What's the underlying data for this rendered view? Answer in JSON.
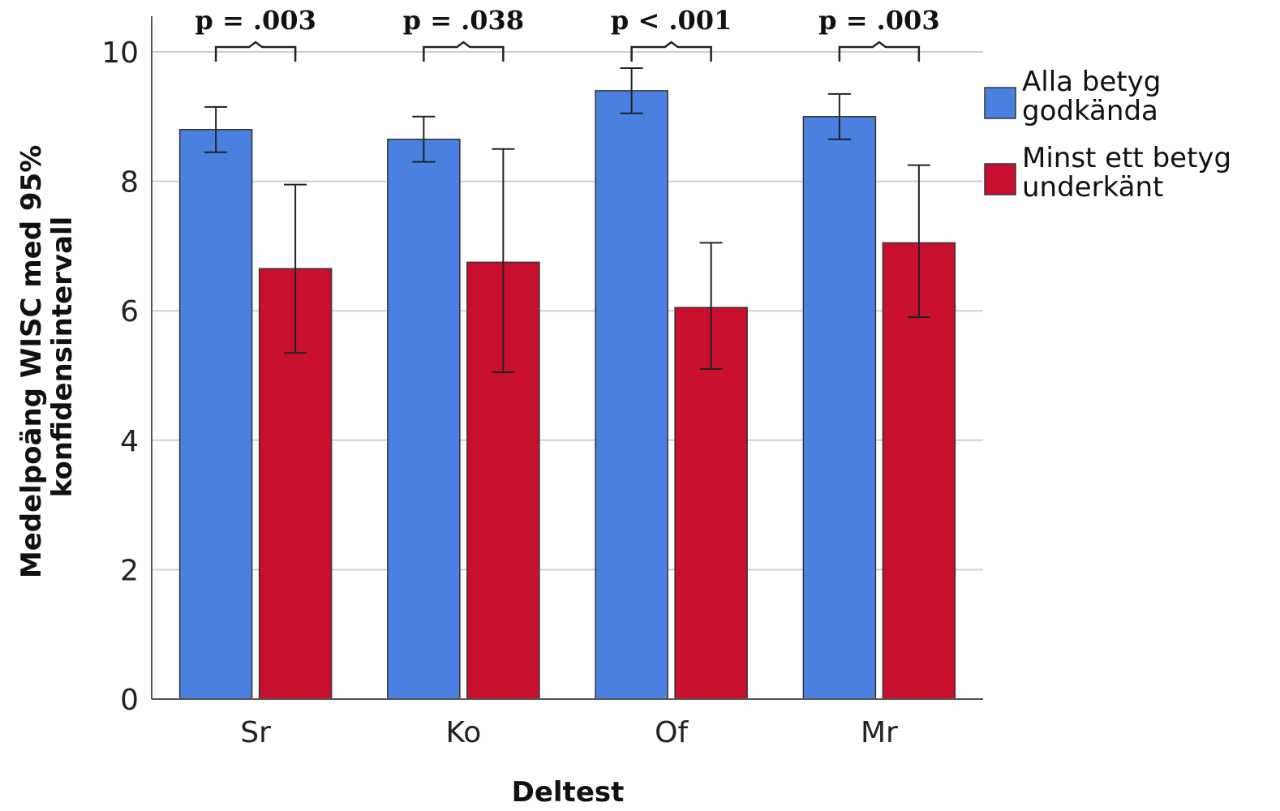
{
  "chart_data": {
    "type": "bar",
    "xlabel": "Deltest",
    "ylabel_lines": [
      "Medelpoäng WISC med 95%",
      "konfidensintervall"
    ],
    "ylim": [
      0,
      10
    ],
    "yticks": [
      0,
      2,
      4,
      6,
      8,
      10
    ],
    "grid": true,
    "legend_position": "right",
    "categories": [
      "Sr",
      "Ko",
      "Of",
      "Mr"
    ],
    "series": [
      {
        "name": "Alla betyg godkända",
        "name_lines": [
          "Alla betyg",
          "godkända"
        ],
        "color": "#4a81e0",
        "values": [
          8.8,
          8.65,
          9.4,
          9.0
        ],
        "ci_low": [
          8.45,
          8.3,
          9.05,
          8.65
        ],
        "ci_high": [
          9.15,
          9.0,
          9.75,
          9.35
        ]
      },
      {
        "name": "Minst ett betyg underkänt",
        "name_lines": [
          "Minst ett betyg",
          "underkänt"
        ],
        "color": "#c8102e",
        "values": [
          6.65,
          6.75,
          6.05,
          7.05
        ],
        "ci_low": [
          5.35,
          5.05,
          5.1,
          5.9
        ],
        "ci_high": [
          7.95,
          8.5,
          7.05,
          8.25
        ]
      }
    ],
    "annotations": [
      "p = .003",
      "p = .038",
      "p < .001",
      "p = .003"
    ]
  }
}
